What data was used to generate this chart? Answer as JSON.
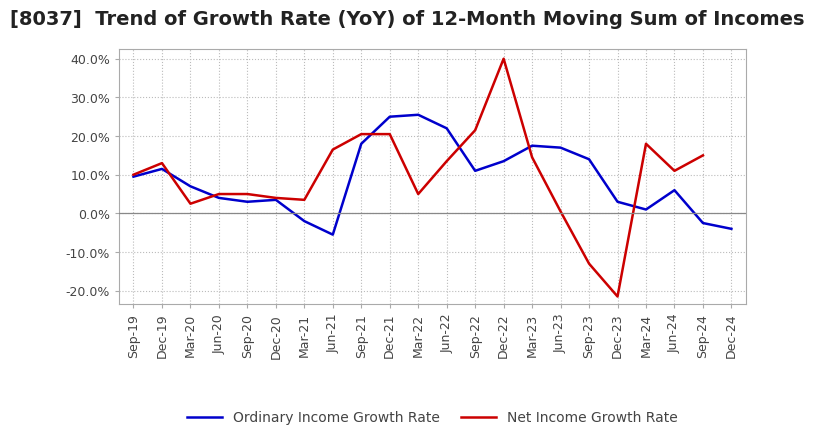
{
  "title": "[8037]  Trend of Growth Rate (YoY) of 12-Month Moving Sum of Incomes",
  "ylim": [
    -0.235,
    0.425
  ],
  "yticks": [
    -0.2,
    -0.1,
    0.0,
    0.1,
    0.2,
    0.3,
    0.4
  ],
  "ytick_labels": [
    "-20.0%",
    "-10.0%",
    "0.0%",
    "10.0%",
    "20.0%",
    "30.0%",
    "40.0%"
  ],
  "x_labels": [
    "Sep-19",
    "Dec-19",
    "Mar-20",
    "Jun-20",
    "Sep-20",
    "Dec-20",
    "Mar-21",
    "Jun-21",
    "Sep-21",
    "Dec-21",
    "Mar-22",
    "Jun-22",
    "Sep-22",
    "Dec-22",
    "Mar-23",
    "Jun-23",
    "Sep-23",
    "Dec-23",
    "Mar-24",
    "Jun-24",
    "Sep-24",
    "Dec-24"
  ],
  "ordinary_income": [
    0.095,
    0.115,
    0.07,
    0.04,
    0.03,
    0.035,
    -0.02,
    -0.055,
    0.18,
    0.25,
    0.255,
    0.22,
    0.11,
    0.135,
    0.175,
    0.17,
    0.14,
    0.03,
    0.01,
    0.06,
    -0.025,
    -0.04
  ],
  "net_income": [
    0.1,
    0.13,
    0.025,
    0.05,
    0.05,
    0.04,
    0.035,
    0.165,
    0.205,
    0.205,
    0.05,
    0.135,
    0.215,
    0.4,
    0.145,
    0.005,
    -0.13,
    -0.215,
    0.18,
    0.11,
    0.15,
    null
  ],
  "ordinary_color": "#0000cc",
  "net_color": "#cc0000",
  "background_color": "#ffffff",
  "grid_color": "#bbbbbb",
  "legend_ordinary": "Ordinary Income Growth Rate",
  "legend_net": "Net Income Growth Rate",
  "title_fontsize": 14,
  "tick_fontsize": 9,
  "legend_fontsize": 10
}
